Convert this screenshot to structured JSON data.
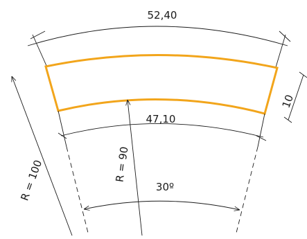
{
  "labels": {
    "outer_arc_length": "52,40",
    "inner_arc_length": "47,10",
    "thickness": "10",
    "outer_radius": "R = 100",
    "inner_radius": "R = 90",
    "angle": "30º"
  },
  "colors": {
    "part_outline": "#f2a51b",
    "dimension_lines": "#1a1a1a"
  }
}
